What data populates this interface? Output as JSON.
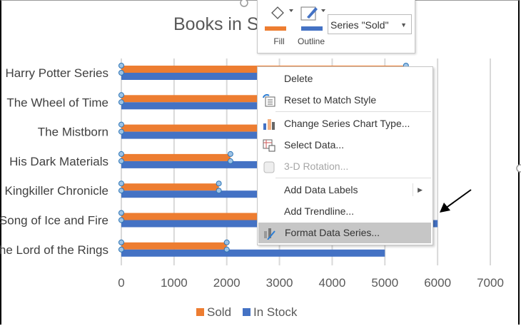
{
  "chart_data": {
    "type": "bar",
    "orientation": "horizontal",
    "title": "Books in S",
    "categories": [
      "Harry Potter Series",
      "The Wheel of Time",
      "The Mistborn",
      "His Dark Materials",
      "Kingkiller Chronicle",
      "Song of Ice and Fire",
      "he Lord of the Rings"
    ],
    "series": [
      {
        "name": "Sold",
        "color": "#ED7D31",
        "values": [
          5400,
          4500,
          4200,
          2070,
          1850,
          3500,
          2000
        ]
      },
      {
        "name": "In Stock",
        "color": "#4472C4",
        "values": [
          5400,
          4800,
          4600,
          3500,
          3000,
          6000,
          5000
        ]
      }
    ],
    "xlim": [
      0,
      7000
    ],
    "xticks": [
      "0",
      "1000",
      "2000",
      "3000",
      "4000",
      "5000",
      "6000",
      "7000"
    ],
    "grid": true,
    "legend": "bottom",
    "selected_series": "Sold"
  },
  "toolbar": {
    "fill_label": "Fill",
    "outline_label": "Outline",
    "series_value": "Series \"Sold\"",
    "fill_color": "#ED7D31",
    "outline_color": "#4472C4"
  },
  "menu": {
    "items": [
      {
        "label": "Delete",
        "icon": ""
      },
      {
        "label": "Reset to Match Style",
        "icon": "reset-style-icon"
      },
      {
        "label": "Change Series Chart Type...",
        "icon": "chart-type-icon"
      },
      {
        "label": "Select Data...",
        "icon": "select-data-icon"
      },
      {
        "label": "3-D Rotation...",
        "icon": "3d-rotation-icon",
        "disabled": true
      },
      {
        "label": "Add Data Labels",
        "icon": "",
        "submenu": true
      },
      {
        "label": "Add Trendline...",
        "icon": ""
      },
      {
        "label": "Format Data Series...",
        "icon": "format-series-icon",
        "highlighted": true
      }
    ]
  }
}
